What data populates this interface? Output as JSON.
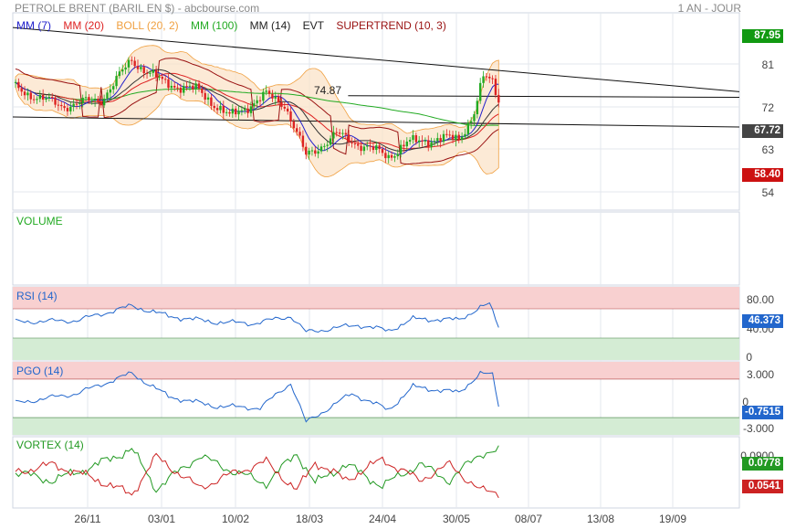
{
  "header": {
    "title": "PETROLE BRENT (BARIL EN $) - abcbourse.com",
    "period": "1 AN - JOUR"
  },
  "legend": [
    {
      "label": "MM (7)",
      "color": "#2222cc"
    },
    {
      "label": "MM (20)",
      "color": "#dd2222"
    },
    {
      "label": "BOLL (20, 2)",
      "color": "#f0a040"
    },
    {
      "label": "MM (100)",
      "color": "#22aa22"
    },
    {
      "label": "MM (14)",
      "color": "#222222"
    },
    {
      "label": "EVT",
      "color": "#222222"
    },
    {
      "label": "SUPERTREND (10, 3)",
      "color": "#991111"
    }
  ],
  "colors": {
    "up": "#22aa22",
    "down": "#dd2222",
    "rsi": "#2266cc",
    "vortex_plus": "#229922",
    "vortex_minus": "#cc2222",
    "zone_high": "#f8d0d0",
    "zone_low": "#d4ecd4"
  },
  "chart_data": [
    {
      "type": "candlestick",
      "title": "PETROLE BRENT (BARIL EN $)",
      "x_ticks": [
        "26/11",
        "03/01",
        "10/02",
        "18/03",
        "24/04",
        "30/05",
        "08/07",
        "13/08",
        "19/09"
      ],
      "y_ticks": [
        54.0,
        63.0,
        72.0,
        81.0
      ],
      "ylim": [
        48,
        92
      ],
      "badges": [
        {
          "value": "87.95",
          "color": "#119911"
        },
        {
          "value": "67.72",
          "color": "#444444"
        },
        {
          "value": "58.40",
          "color": "#cc1111"
        }
      ],
      "annotation": "74.87",
      "close_keypoints": [
        [
          0,
          76.5
        ],
        [
          15,
          72.5
        ],
        [
          28,
          74
        ],
        [
          38,
          83
        ],
        [
          48,
          78
        ],
        [
          60,
          76
        ],
        [
          70,
          70
        ],
        [
          82,
          75
        ],
        [
          88,
          73
        ],
        [
          95,
          61
        ],
        [
          105,
          66
        ],
        [
          115,
          63
        ],
        [
          122,
          61
        ],
        [
          128,
          64
        ],
        [
          138,
          65
        ],
        [
          145,
          65
        ],
        [
          150,
          71
        ],
        [
          153,
          79
        ],
        [
          156,
          78
        ],
        [
          158,
          74
        ]
      ],
      "trendlines": [
        {
          "from": [
            "2024-10-14",
            90.5
          ],
          "to": [
            "2025-09-30",
            75.8
          ]
        },
        {
          "from": [
            "2024-10-14",
            70.0
          ],
          "to": [
            "2025-09-30",
            67.7
          ]
        },
        {
          "from": [
            "2025-03-25",
            74.87
          ],
          "to": [
            "2025-09-30",
            74.5
          ]
        }
      ]
    },
    {
      "type": "bar",
      "title": "VOLUME"
    },
    {
      "type": "line",
      "title": "RSI (14)",
      "y_ticks": [
        "80.00",
        "40.00",
        "0"
      ],
      "zones": [
        70,
        30
      ],
      "last": "46.373",
      "keypoints": [
        [
          0,
          52
        ],
        [
          20,
          54
        ],
        [
          38,
          74
        ],
        [
          50,
          60
        ],
        [
          65,
          52
        ],
        [
          78,
          50
        ],
        [
          90,
          60
        ],
        [
          95,
          38
        ],
        [
          112,
          48
        ],
        [
          122,
          40
        ],
        [
          130,
          56
        ],
        [
          145,
          55
        ],
        [
          152,
          72
        ],
        [
          155,
          76
        ],
        [
          158,
          46
        ]
      ]
    },
    {
      "type": "line",
      "title": "PGO (14)",
      "y_ticks": [
        "3.000",
        "0",
        "-3.000"
      ],
      "zones": [
        2,
        -2
      ],
      "last": "-0.7515",
      "keypoints": [
        [
          0,
          -0.5
        ],
        [
          20,
          0.5
        ],
        [
          38,
          2.6
        ],
        [
          50,
          0.2
        ],
        [
          65,
          -0.8
        ],
        [
          80,
          -1.0
        ],
        [
          90,
          1.6
        ],
        [
          95,
          -2.5
        ],
        [
          110,
          0.5
        ],
        [
          122,
          -1.2
        ],
        [
          130,
          1.2
        ],
        [
          145,
          0.6
        ],
        [
          152,
          2.6
        ],
        [
          156,
          2.4
        ],
        [
          158,
          -0.75
        ]
      ]
    },
    {
      "type": "line",
      "title": "VORTEX (14)",
      "y_ticks": [
        "0.0900"
      ],
      "ylim": [
        -0.12,
        0.12
      ],
      "plus_last": "0.0778",
      "minus_last": "0.0541",
      "keypoints": [
        [
          0,
          0.0
        ],
        [
          12,
          -0.03
        ],
        [
          25,
          0.02
        ],
        [
          38,
          0.085
        ],
        [
          46,
          -0.06
        ],
        [
          60,
          0.06
        ],
        [
          72,
          0.0
        ],
        [
          82,
          -0.04
        ],
        [
          92,
          0.07
        ],
        [
          98,
          -0.04
        ],
        [
          108,
          0.03
        ],
        [
          120,
          -0.05
        ],
        [
          132,
          0.03
        ],
        [
          142,
          -0.03
        ],
        [
          152,
          0.07
        ],
        [
          158,
          0.078
        ]
      ]
    }
  ]
}
